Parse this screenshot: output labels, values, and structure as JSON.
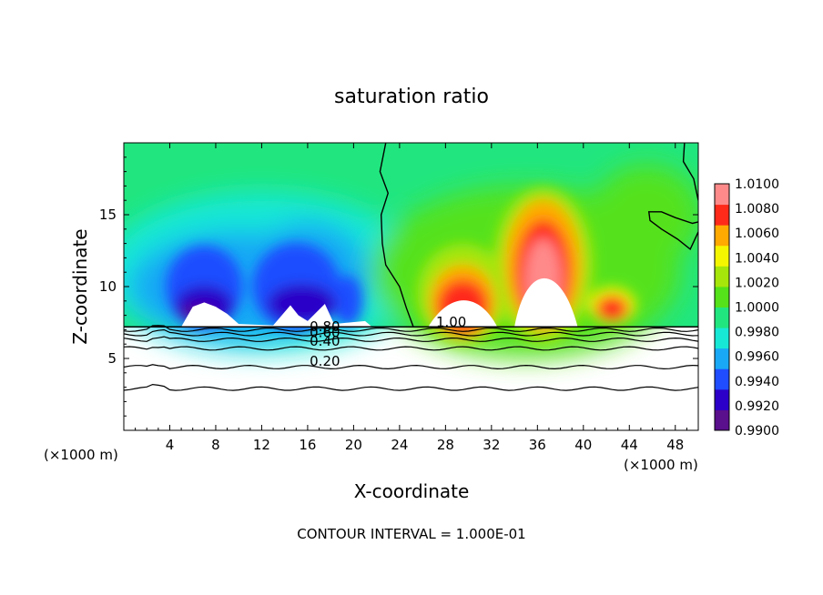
{
  "chart_data": {
    "type": "heatmap",
    "title": "saturation ratio",
    "xlabel": "X-coordinate",
    "ylabel": "Z-coordinate",
    "x_unit_left": "(×1000 m)",
    "x_unit_right": "(×1000 m)",
    "xlim": [
      0,
      50
    ],
    "ylim": [
      0,
      20
    ],
    "x_ticks": [
      4,
      8,
      12,
      16,
      20,
      24,
      28,
      32,
      36,
      40,
      44,
      48
    ],
    "y_ticks": [
      5,
      10,
      15
    ],
    "footer": "CONTOUR INTERVAL = 1.000E-01",
    "colorbar": {
      "levels": [
        0.99,
        0.992,
        0.994,
        0.996,
        0.998,
        1.0,
        1.002,
        1.004,
        1.006,
        1.008,
        1.01
      ],
      "labels": [
        "0.9900",
        "0.9920",
        "0.9940",
        "0.9960",
        "0.9980",
        "1.0000",
        "1.0020",
        "1.0040",
        "1.0060",
        "1.0080",
        "1.0100"
      ],
      "colors": [
        "#5a0f8c",
        "#2c00c8",
        "#1f4dff",
        "#19a8f5",
        "#17e8d6",
        "#21e67f",
        "#55e21a",
        "#a6e60a",
        "#f4f600",
        "#ffaa00",
        "#ff2a1a",
        "#ff8a8a"
      ]
    },
    "contour_labels": [
      {
        "text": "1.00",
        "x": 28.5,
        "y": 7.2
      },
      {
        "text": "0.80",
        "x": 17.5,
        "y": 6.9
      },
      {
        "text": "0.60",
        "x": 17.5,
        "y": 6.5
      },
      {
        "text": "0.40",
        "x": 17.5,
        "y": 5.9
      },
      {
        "text": "0.20",
        "x": 17.5,
        "y": 4.5
      }
    ],
    "contour_lines": [
      {
        "value": 0.2,
        "base": 4.4
      },
      {
        "value": 0.4,
        "base": 5.7
      },
      {
        "value": 0.6,
        "base": 6.3
      },
      {
        "value": 0.8,
        "base": 6.7
      },
      {
        "value": 0.9,
        "base": 7.0
      },
      {
        "value": 0.1,
        "base": 2.9
      }
    ],
    "grid": false,
    "legend": "right colorbar"
  }
}
